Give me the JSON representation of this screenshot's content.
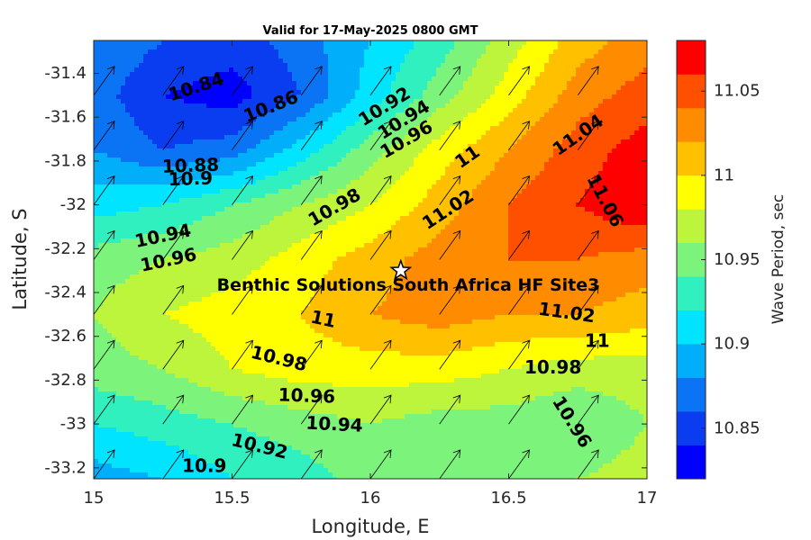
{
  "chart_data": {
    "type": "heatmap",
    "title": "Valid for 17-May-2025 0800 GMT",
    "xlabel": "Longitude, E",
    "ylabel": "Latitude, S",
    "colorbar_label": "Wave Period, sec",
    "xlim": [
      15,
      17
    ],
    "ylim": [
      -33.25,
      -31.25
    ],
    "xticks": [
      15,
      15.5,
      16,
      16.5,
      17
    ],
    "xtick_labels": [
      "15",
      "15.5",
      "16",
      "16.5",
      "17"
    ],
    "yticks": [
      -31.4,
      -31.6,
      -31.8,
      -32,
      -32.2,
      -32.4,
      -32.6,
      -32.8,
      -33,
      -33.2
    ],
    "ytick_labels": [
      "-31.4",
      "-31.6",
      "-31.8",
      "-32",
      "-32.2",
      "-32.4",
      "-32.6",
      "-32.8",
      "-33",
      "-33.2"
    ],
    "colorbar_range": [
      10.82,
      11.08
    ],
    "colorbar_ticks": [
      10.85,
      10.9,
      10.95,
      11,
      11.05
    ],
    "colorbar_tick_labels": [
      "10.85",
      "10.9",
      "10.95",
      "11",
      "11.05"
    ],
    "levels": [
      10.82,
      10.84,
      10.86,
      10.88,
      10.9,
      10.92,
      10.94,
      10.96,
      10.98,
      11,
      11.02,
      11.04,
      11.06,
      11.08
    ],
    "level_colors": [
      "#0000ff",
      "#0b3df0",
      "#0a74f5",
      "#00aefa",
      "#00e4ff",
      "#30f0c0",
      "#7cf47c",
      "#bdf53c",
      "#ffff00",
      "#ffc000",
      "#ff8c00",
      "#ff5000",
      "#ff0000"
    ],
    "grid_lon": [
      15,
      15.25,
      15.5,
      15.75,
      16,
      16.25,
      16.5,
      16.75,
      17
    ],
    "grid_lat": [
      -31.25,
      -31.5,
      -31.75,
      -32.0,
      -32.25,
      -32.5,
      -32.75,
      -33.0,
      -33.25
    ],
    "wave_period": [
      [
        10.88,
        10.86,
        10.85,
        10.87,
        10.9,
        10.93,
        10.97,
        11.01,
        11.03
      ],
      [
        10.87,
        10.84,
        10.83,
        10.86,
        10.91,
        10.95,
        10.99,
        11.03,
        11.05
      ],
      [
        10.88,
        10.86,
        10.87,
        10.91,
        10.95,
        10.99,
        11.02,
        11.05,
        11.07
      ],
      [
        10.91,
        10.92,
        10.94,
        10.96,
        10.98,
        11.01,
        11.04,
        11.06,
        11.08
      ],
      [
        10.95,
        10.96,
        10.97,
        10.99,
        11.01,
        11.03,
        11.04,
        11.04,
        11.03
      ],
      [
        10.96,
        10.98,
        10.99,
        11.0,
        11.02,
        11.03,
        11.02,
        11.02,
        11.01
      ],
      [
        10.95,
        10.96,
        10.98,
        10.99,
        10.99,
        10.99,
        10.98,
        10.97,
        10.97
      ],
      [
        10.92,
        10.93,
        10.94,
        10.95,
        10.96,
        10.95,
        10.95,
        10.94,
        10.96
      ],
      [
        10.89,
        10.9,
        10.92,
        10.93,
        10.95,
        10.95,
        10.95,
        10.96,
        10.97
      ]
    ],
    "arrow_direction": "north-east",
    "contour_labels": [
      {
        "text": "10.84",
        "lon": 15.37,
        "lat": -31.46,
        "angle": -18
      },
      {
        "text": "10.86",
        "lon": 15.64,
        "lat": -31.55,
        "angle": -22
      },
      {
        "text": "10.88",
        "lon": 15.35,
        "lat": -31.82,
        "angle": -2
      },
      {
        "text": "10.9",
        "lon": 15.35,
        "lat": -31.88,
        "angle": -2
      },
      {
        "text": "10.92",
        "lon": 16.05,
        "lat": -31.55,
        "angle": -32
      },
      {
        "text": "10.94",
        "lon": 16.12,
        "lat": -31.61,
        "angle": -32
      },
      {
        "text": "10.96",
        "lon": 16.13,
        "lat": -31.7,
        "angle": -30
      },
      {
        "text": "10.98",
        "lon": 15.87,
        "lat": -32.01,
        "angle": -30
      },
      {
        "text": "11",
        "lon": 16.35,
        "lat": -31.78,
        "angle": -35
      },
      {
        "text": "11.02",
        "lon": 16.28,
        "lat": -32.02,
        "angle": -33
      },
      {
        "text": "11.04",
        "lon": 16.75,
        "lat": -31.68,
        "angle": -35
      },
      {
        "text": "11.06",
        "lon": 16.85,
        "lat": -31.98,
        "angle": 62
      },
      {
        "text": "10.94",
        "lon": 15.25,
        "lat": -32.14,
        "angle": -12
      },
      {
        "text": "10.96",
        "lon": 15.27,
        "lat": -32.25,
        "angle": -12
      },
      {
        "text": "11.02",
        "lon": 16.71,
        "lat": -32.49,
        "angle": 8
      },
      {
        "text": "11",
        "lon": 15.83,
        "lat": -32.52,
        "angle": 12
      },
      {
        "text": "11",
        "lon": 16.82,
        "lat": -32.62,
        "angle": 0
      },
      {
        "text": "10.98",
        "lon": 15.67,
        "lat": -32.7,
        "angle": 14
      },
      {
        "text": "10.98",
        "lon": 16.66,
        "lat": -32.74,
        "angle": 0
      },
      {
        "text": "10.96",
        "lon": 15.77,
        "lat": -32.87,
        "angle": 2
      },
      {
        "text": "10.94",
        "lon": 15.87,
        "lat": -33.0,
        "angle": 3
      },
      {
        "text": "10.96",
        "lon": 16.73,
        "lat": -32.99,
        "angle": 58
      },
      {
        "text": "10.92",
        "lon": 15.6,
        "lat": -33.1,
        "angle": 14
      },
      {
        "text": "10.9",
        "lon": 15.4,
        "lat": -33.19,
        "angle": 0
      }
    ],
    "site": {
      "name": "Benthic Solutions South Africa HF Site3",
      "lon": 16.11,
      "lat": -32.3
    }
  }
}
